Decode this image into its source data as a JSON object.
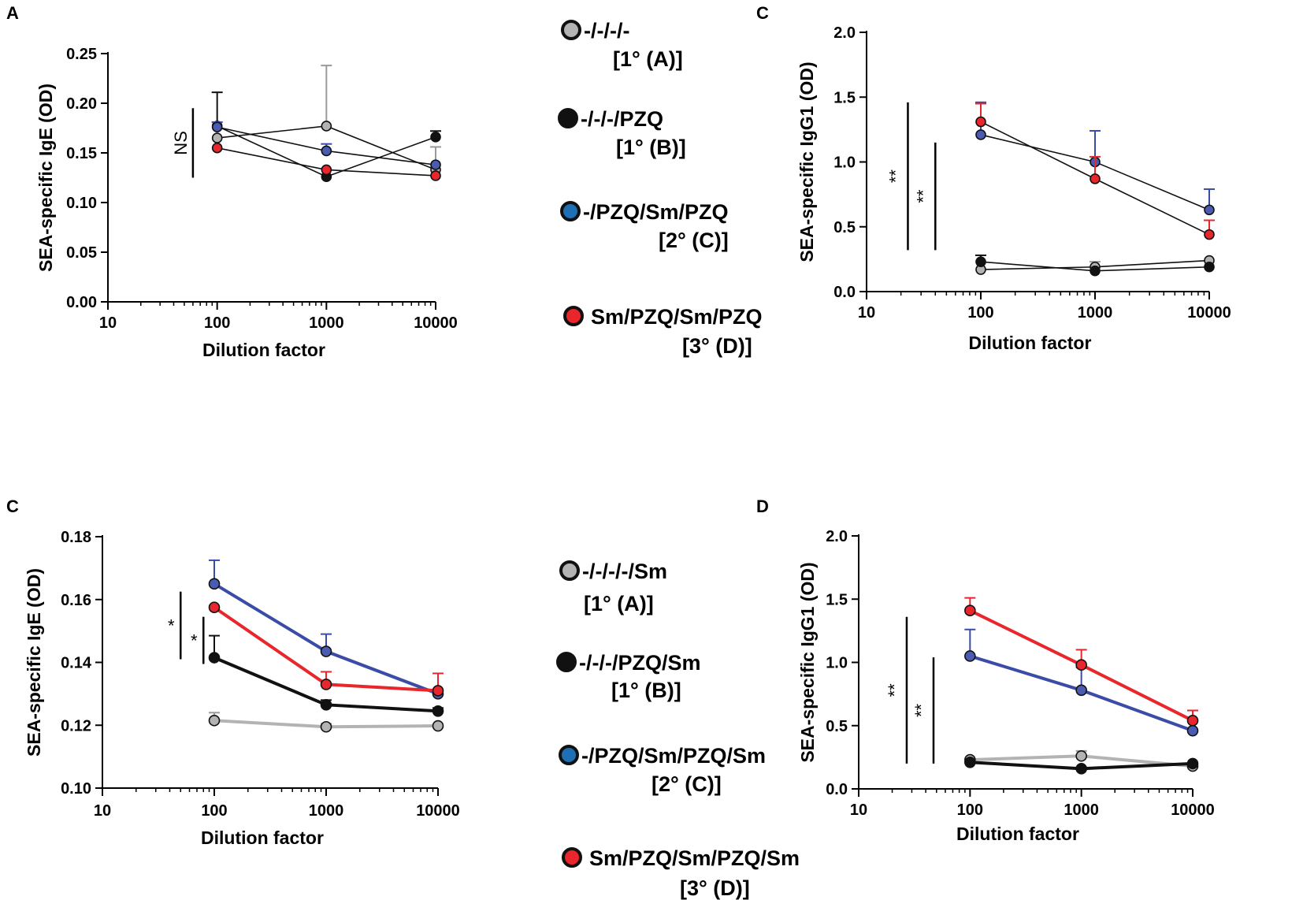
{
  "legends": [
    {
      "entries": [
        {
          "label": "-/-/-/-",
          "group": "[1° (A)]",
          "color": "#b3b3b3"
        },
        {
          "label": "-/-/-/PZQ",
          "group": "[1° (B)]",
          "color": "#111111"
        },
        {
          "label": "-/PZQ/Sm/PZQ",
          "group": "[2° (C)]",
          "color": "#1f6fb5"
        },
        {
          "label": "Sm/PZQ/Sm/PZQ",
          "group": "[3° (D)]",
          "color": "#e8262b"
        }
      ]
    },
    {
      "entries": [
        {
          "label": "-/-/-/-/Sm",
          "group": "[1° (A)]",
          "color": "#b3b3b3"
        },
        {
          "label": "-/-/-/PZQ/Sm",
          "group": "[1° (B)]",
          "color": "#111111"
        },
        {
          "label": "-/PZQ/Sm/PZQ/Sm",
          "group": "[2° (C)]",
          "color": "#1f6fb5"
        },
        {
          "label": "Sm/PZQ/Sm/PZQ/Sm",
          "group": "[3° (D)]",
          "color": "#e8262b"
        }
      ]
    }
  ],
  "chart_data": [
    {
      "panel": "A",
      "type": "line",
      "xscale": "log",
      "xlabel": "Dilution factor",
      "ylabel": "SEA-specific IgE (OD)",
      "x": [
        100,
        1000,
        10000
      ],
      "xticks": [
        10,
        100,
        1000,
        10000
      ],
      "xtick_labels": [
        "10",
        "100",
        "1000",
        "10000"
      ],
      "xlim": [
        10,
        10000
      ],
      "ylim": [
        0,
        0.25
      ],
      "yticks": [
        0,
        0.05,
        0.1,
        0.15,
        0.2,
        0.25
      ],
      "ytick_labels": [
        "0.00",
        "0.05",
        "0.10",
        "0.15",
        "0.20",
        "0.25"
      ],
      "style": "thin",
      "series": [
        {
          "name": "-/-/-/-",
          "color": "#b3b3b3",
          "line_color": "#111111",
          "values": [
            0.165,
            0.177,
            0.133
          ],
          "errors": [
            0,
            0.061,
            0.023
          ],
          "err_color": "#9a9a9a"
        },
        {
          "name": "-/-/-/PZQ",
          "color": "#111111",
          "line_color": "#111111",
          "values": [
            0.177,
            0.126,
            0.166
          ],
          "errors": [
            0.034,
            0,
            0.006
          ],
          "err_color": "#111111"
        },
        {
          "name": "-/PZQ/Sm/PZQ",
          "color": "#4a5bb0",
          "line_color": "#111111",
          "values": [
            0.176,
            0.152,
            0.138
          ],
          "errors": [
            0.005,
            0.007,
            0
          ],
          "err_color": "#3a4ca6"
        },
        {
          "name": "Sm/PZQ/Sm/PZQ",
          "color": "#e8262b",
          "line_color": "#111111",
          "values": [
            0.155,
            0.133,
            0.127
          ],
          "errors": [
            0,
            0,
            0
          ],
          "err_color": "#e8262b"
        }
      ],
      "annotations": [
        {
          "text": "NS",
          "y_range": [
            0.125,
            0.195
          ],
          "x": 60,
          "rotate": true
        }
      ]
    },
    {
      "panel": "C",
      "type": "line",
      "xscale": "log",
      "xlabel": "Dilution factor",
      "ylabel": "SEA-specific IgG1 (OD)",
      "x": [
        100,
        1000,
        10000
      ],
      "xticks": [
        10,
        100,
        1000,
        10000
      ],
      "xtick_labels": [
        "10",
        "100",
        "1000",
        "10000"
      ],
      "xlim": [
        10,
        10000
      ],
      "ylim": [
        0,
        2.0
      ],
      "yticks": [
        0,
        0.5,
        1.0,
        1.5,
        2.0
      ],
      "ytick_labels": [
        "0.0",
        "0.5",
        "1.0",
        "1.5",
        "2.0"
      ],
      "style": "thin",
      "series": [
        {
          "name": "-/-/-/-",
          "color": "#b3b3b3",
          "line_color": "#111111",
          "values": [
            0.17,
            0.19,
            0.24
          ],
          "errors": [
            0,
            0.04,
            0
          ],
          "err_color": "#9a9a9a"
        },
        {
          "name": "-/-/-/PZQ",
          "color": "#111111",
          "line_color": "#111111",
          "values": [
            0.23,
            0.16,
            0.19
          ],
          "errors": [
            0.05,
            0,
            0
          ],
          "err_color": "#111111"
        },
        {
          "name": "-/PZQ/Sm/PZQ",
          "color": "#4a5bb0",
          "line_color": "#111111",
          "values": [
            1.21,
            1.0,
            0.63
          ],
          "errors": [
            0.25,
            0.24,
            0.16
          ],
          "err_color": "#3a4ca6"
        },
        {
          "name": "Sm/PZQ/Sm/PZQ",
          "color": "#e8262b",
          "line_color": "#111111",
          "values": [
            1.31,
            0.87,
            0.44
          ],
          "errors": [
            0.14,
            0.17,
            0.11
          ],
          "err_color": "#e8262b"
        }
      ],
      "annotations": [
        {
          "text": "**",
          "y_range": [
            0.32,
            1.46
          ],
          "x": 23,
          "rotate": true
        },
        {
          "text": "**",
          "y_range": [
            0.32,
            1.15
          ],
          "x": 40,
          "rotate": true
        }
      ]
    },
    {
      "panel": "C",
      "type": "line",
      "xscale": "log",
      "xlabel": "Dilution factor",
      "ylabel": "SEA-specific IgE (OD)",
      "x": [
        100,
        1000,
        10000
      ],
      "xticks": [
        10,
        100,
        1000,
        10000
      ],
      "xtick_labels": [
        "10",
        "100",
        "1000",
        "10000"
      ],
      "xlim": [
        10,
        10000
      ],
      "ylim": [
        0.1,
        0.18
      ],
      "yticks": [
        0.1,
        0.12,
        0.14,
        0.16,
        0.18
      ],
      "ytick_labels": [
        "0.10",
        "0.12",
        "0.14",
        "0.16",
        "0.18"
      ],
      "style": "thick",
      "series": [
        {
          "name": "-/-/-/-/Sm",
          "color": "#b3b3b3",
          "line_color": "#b3b3b3",
          "values": [
            0.1215,
            0.1195,
            0.1198
          ],
          "errors": [
            0.0025,
            0.001,
            0
          ],
          "err_color": "#9a9a9a"
        },
        {
          "name": "-/-/-/PZQ/Sm",
          "color": "#111111",
          "line_color": "#111111",
          "values": [
            0.1415,
            0.1265,
            0.1245
          ],
          "errors": [
            0.007,
            0.0015,
            0.001
          ],
          "err_color": "#111111"
        },
        {
          "name": "-/PZQ/Sm/PZQ/Sm",
          "color": "#4a5bb0",
          "line_color": "#3a4ca6",
          "values": [
            0.165,
            0.1435,
            0.13
          ],
          "errors": [
            0.0075,
            0.0055,
            0
          ],
          "err_color": "#3a4ca6"
        },
        {
          "name": "Sm/PZQ/Sm/PZQ/Sm",
          "color": "#e8262b",
          "line_color": "#e8262b",
          "values": [
            0.1575,
            0.133,
            0.131
          ],
          "errors": [
            0,
            0.004,
            0.0055
          ],
          "err_color": "#e8262b"
        }
      ],
      "annotations": [
        {
          "text": "*",
          "y_range": [
            0.141,
            0.1625
          ],
          "x": 50,
          "rotate": false
        },
        {
          "text": "*",
          "y_range": [
            0.1395,
            0.1545
          ],
          "x": 80,
          "rotate": false
        }
      ]
    },
    {
      "panel": "D",
      "type": "line",
      "xscale": "log",
      "xlabel": "Dilution factor",
      "ylabel": "SEA-specific IgG1 (OD)",
      "x": [
        100,
        1000,
        10000
      ],
      "xticks": [
        10,
        100,
        1000,
        10000
      ],
      "xtick_labels": [
        "10",
        "100",
        "1000",
        "10000"
      ],
      "xlim": [
        10,
        10000
      ],
      "ylim": [
        0,
        2.0
      ],
      "yticks": [
        0,
        0.5,
        1.0,
        1.5,
        2.0
      ],
      "ytick_labels": [
        "0.0",
        "0.5",
        "1.0",
        "1.5",
        "2.0"
      ],
      "style": "thick",
      "series": [
        {
          "name": "-/-/-/-/Sm",
          "color": "#b3b3b3",
          "line_color": "#b3b3b3",
          "values": [
            0.23,
            0.26,
            0.18
          ],
          "errors": [
            0,
            0.04,
            0
          ],
          "err_color": "#9a9a9a"
        },
        {
          "name": "-/-/-/PZQ/Sm",
          "color": "#111111",
          "line_color": "#111111",
          "values": [
            0.21,
            0.16,
            0.2
          ],
          "errors": [
            0,
            0,
            0
          ],
          "err_color": "#111111"
        },
        {
          "name": "-/PZQ/Sm/PZQ/Sm",
          "color": "#4a5bb0",
          "line_color": "#3a4ca6",
          "values": [
            1.05,
            0.78,
            0.46
          ],
          "errors": [
            0.21,
            0.18,
            0
          ],
          "err_color": "#3a4ca6"
        },
        {
          "name": "Sm/PZQ/Sm/PZQ/Sm",
          "color": "#e8262b",
          "line_color": "#e8262b",
          "values": [
            1.41,
            0.98,
            0.54
          ],
          "errors": [
            0.1,
            0.12,
            0.08
          ],
          "err_color": "#e8262b"
        }
      ],
      "annotations": [
        {
          "text": "**",
          "y_range": [
            0.2,
            1.36
          ],
          "x": 27,
          "rotate": true
        },
        {
          "text": "**",
          "y_range": [
            0.2,
            1.04
          ],
          "x": 47,
          "rotate": true
        }
      ]
    }
  ]
}
